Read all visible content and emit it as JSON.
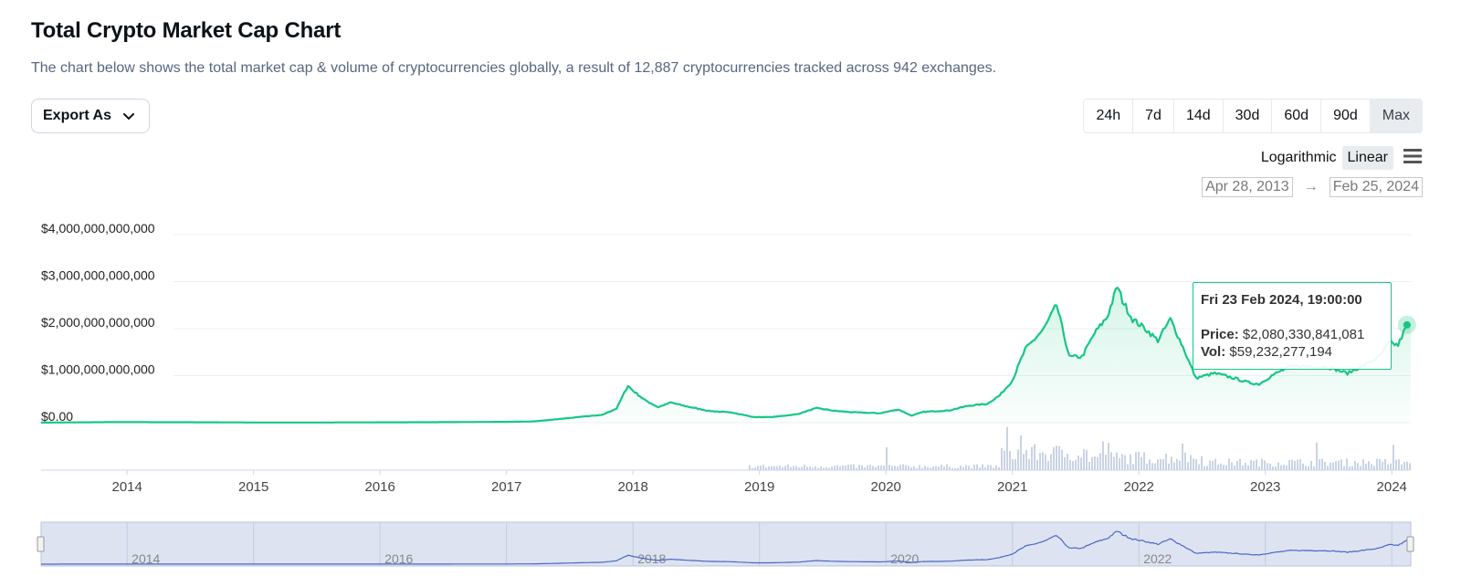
{
  "header": {
    "title": "Total Crypto Market Cap Chart",
    "subtitle": "The chart below shows the total market cap & volume of cryptocurrencies globally, a result of 12,887 cryptocurrencies tracked across 942 exchanges."
  },
  "toolbar": {
    "export_label": "Export As",
    "ranges": [
      "24h",
      "7d",
      "14d",
      "30d",
      "60d",
      "90d",
      "Max"
    ],
    "active_range": "Max",
    "scale_options": [
      "Logarithmic",
      "Linear"
    ],
    "active_scale": "Linear",
    "date_from": "Apr 28, 2013",
    "date_arrow": "→",
    "date_to": "Feb 25, 2024"
  },
  "tooltip": {
    "date": "Fri 23 Feb 2024, 19:00:00",
    "price_label": "Price:",
    "price_value": "$2,080,330,841,081",
    "vol_label": "Vol:",
    "vol_value": "$59,232,277,194"
  },
  "colors": {
    "line": "#16c784",
    "volume": "#c9d3e3",
    "navigator_fill": "#dde3f1",
    "navigator_line": "#4a67c4"
  },
  "chart_data": {
    "type": "line",
    "title": "Total Crypto Market Cap Chart",
    "xlabel": "",
    "ylabel": "",
    "y_ticks": [
      "$0.00",
      "$1,000,000,000,000",
      "$2,000,000,000,000",
      "$3,000,000,000,000",
      "$4,000,000,000,000"
    ],
    "x_ticks": [
      "2014",
      "2015",
      "2016",
      "2017",
      "2018",
      "2019",
      "2020",
      "2021",
      "2022",
      "2023",
      "2024"
    ],
    "navigator_ticks": [
      "2014",
      "2016",
      "2018",
      "2020",
      "2022"
    ],
    "ylim": [
      0,
      4000000000000
    ],
    "xlim": [
      2013.32,
      2024.15
    ],
    "series": [
      {
        "values": [
          [
            2013.32,
            0.0015
          ],
          [
            2013.9,
            0.012
          ],
          [
            2014.5,
            0.009
          ],
          [
            2015.0,
            0.004
          ],
          [
            2015.5,
            0.004
          ],
          [
            2016.0,
            0.007
          ],
          [
            2016.5,
            0.011
          ],
          [
            2017.0,
            0.018
          ],
          [
            2017.2,
            0.025
          ],
          [
            2017.35,
            0.06
          ],
          [
            2017.5,
            0.1
          ],
          [
            2017.6,
            0.13
          ],
          [
            2017.75,
            0.16
          ],
          [
            2017.87,
            0.3
          ],
          [
            2017.96,
            0.79
          ],
          [
            2018.0,
            0.68
          ],
          [
            2018.1,
            0.47
          ],
          [
            2018.2,
            0.33
          ],
          [
            2018.3,
            0.43
          ],
          [
            2018.4,
            0.36
          ],
          [
            2018.6,
            0.25
          ],
          [
            2018.8,
            0.21
          ],
          [
            2018.95,
            0.12
          ],
          [
            2019.1,
            0.12
          ],
          [
            2019.3,
            0.18
          ],
          [
            2019.45,
            0.31
          ],
          [
            2019.6,
            0.25
          ],
          [
            2019.75,
            0.22
          ],
          [
            2019.95,
            0.2
          ],
          [
            2020.1,
            0.28
          ],
          [
            2020.2,
            0.15
          ],
          [
            2020.3,
            0.23
          ],
          [
            2020.5,
            0.26
          ],
          [
            2020.65,
            0.36
          ],
          [
            2020.8,
            0.4
          ],
          [
            2020.9,
            0.58
          ],
          [
            2021.0,
            0.9
          ],
          [
            2021.1,
            1.55
          ],
          [
            2021.25,
            2.0
          ],
          [
            2021.35,
            2.5
          ],
          [
            2021.45,
            1.4
          ],
          [
            2021.55,
            1.4
          ],
          [
            2021.65,
            1.9
          ],
          [
            2021.75,
            2.25
          ],
          [
            2021.83,
            2.9
          ],
          [
            2021.87,
            2.6
          ],
          [
            2021.95,
            2.2
          ],
          [
            2022.05,
            2.0
          ],
          [
            2022.15,
            1.75
          ],
          [
            2022.25,
            2.2
          ],
          [
            2022.35,
            1.6
          ],
          [
            2022.45,
            0.95
          ],
          [
            2022.6,
            1.05
          ],
          [
            2022.75,
            0.95
          ],
          [
            2022.87,
            0.85
          ],
          [
            2022.95,
            0.82
          ],
          [
            2023.05,
            1.0
          ],
          [
            2023.2,
            1.2
          ],
          [
            2023.35,
            1.2
          ],
          [
            2023.5,
            1.18
          ],
          [
            2023.65,
            1.05
          ],
          [
            2023.8,
            1.25
          ],
          [
            2023.9,
            1.4
          ],
          [
            2023.98,
            1.7
          ],
          [
            2024.05,
            1.65
          ],
          [
            2024.12,
            2.08
          ],
          [
            2024.15,
            2.08
          ]
        ],
        "unit": "trillion USD"
      }
    ]
  }
}
